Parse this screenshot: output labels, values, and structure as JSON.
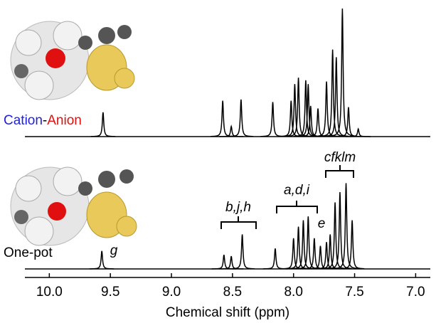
{
  "chart_data": {
    "type": "spectrum",
    "x_label": "Chemical shift (ppm)",
    "xlim": [
      10.2,
      6.88
    ],
    "xticks": [
      {
        "value": 10,
        "label": "10.0"
      },
      9.5,
      {
        "value": 9,
        "label": "9.0"
      },
      8.5,
      {
        "value": 8,
        "label": "8.0"
      },
      7.5,
      {
        "value": 7,
        "label": "7.0"
      }
    ],
    "ylim": [
      0,
      100
    ],
    "series": [
      {
        "label_parts": [
          {
            "text": "Cation",
            "color": "#1f1fe0"
          },
          {
            "text": "-",
            "color": "#000000"
          },
          {
            "text": "Anion",
            "color": "#e01010"
          }
        ],
        "color": "#000000",
        "peaks_x": [
          9.56,
          8.58,
          8.51,
          8.43,
          8.17,
          8.02,
          7.99,
          7.96,
          7.9,
          7.88,
          7.86,
          7.8,
          7.73,
          7.68,
          7.65,
          7.6,
          7.55,
          7.47
        ],
        "values": [
          19,
          28,
          8,
          29,
          27,
          28,
          41,
          46,
          44,
          41,
          24,
          22,
          43,
          68,
          62,
          100,
          23,
          6
        ]
      },
      {
        "name": "One-pot",
        "color": "#000000",
        "peaks_x": [
          9.57,
          8.57,
          8.51,
          8.42,
          8.15,
          8.0,
          7.96,
          7.92,
          7.88,
          7.83,
          7.78,
          7.73,
          7.7,
          7.66,
          7.62,
          7.57,
          7.52
        ],
        "values": [
          14,
          11,
          10,
          27,
          16,
          24,
          33,
          38,
          41,
          24,
          18,
          21,
          27,
          52,
          60,
          67,
          38
        ]
      }
    ],
    "annotations": [
      "g",
      "b,j,h",
      "a,d,i",
      "e",
      "cfklm"
    ]
  }
}
